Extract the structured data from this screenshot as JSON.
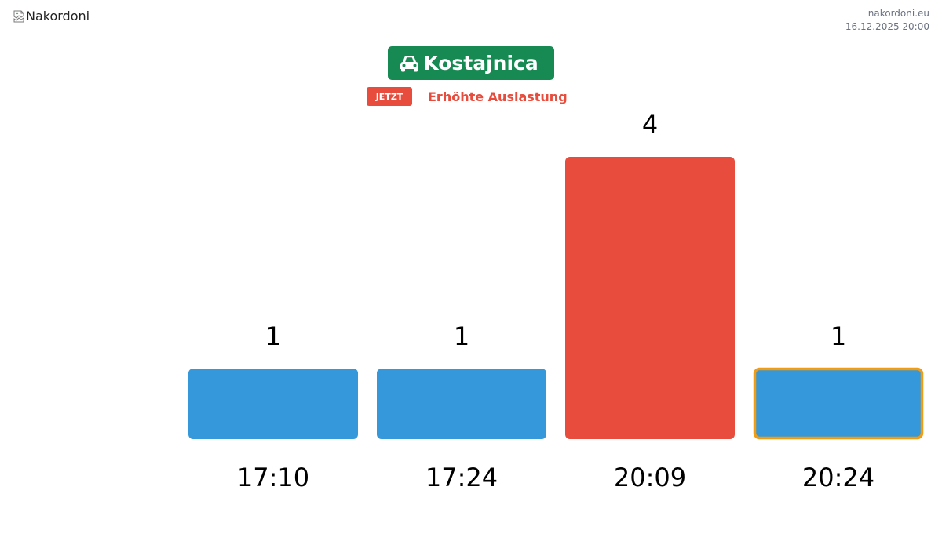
{
  "header": {
    "logo_alt": "Nakordoni",
    "site": "nakordoni.eu",
    "timestamp": "16.12.2025 20:00"
  },
  "title": {
    "icon": "car-icon",
    "text": "Kostajnica",
    "color": "#168a52"
  },
  "status": {
    "badge": "JETZT",
    "text": "Erhöhte Auslastung",
    "color": "#e74c3c"
  },
  "chart_data": {
    "type": "bar",
    "categories": [
      "17:10",
      "17:24",
      "20:09",
      "20:24"
    ],
    "values": [
      1,
      1,
      4,
      1
    ],
    "bar_colors": [
      "#3498db",
      "#3498db",
      "#e74c3c",
      "#3498db"
    ],
    "highlight_index": 3,
    "highlight_color": "#f39c12",
    "ylim": [
      0,
      4
    ],
    "grid": false,
    "title": "",
    "xlabel": "",
    "ylabel": ""
  }
}
